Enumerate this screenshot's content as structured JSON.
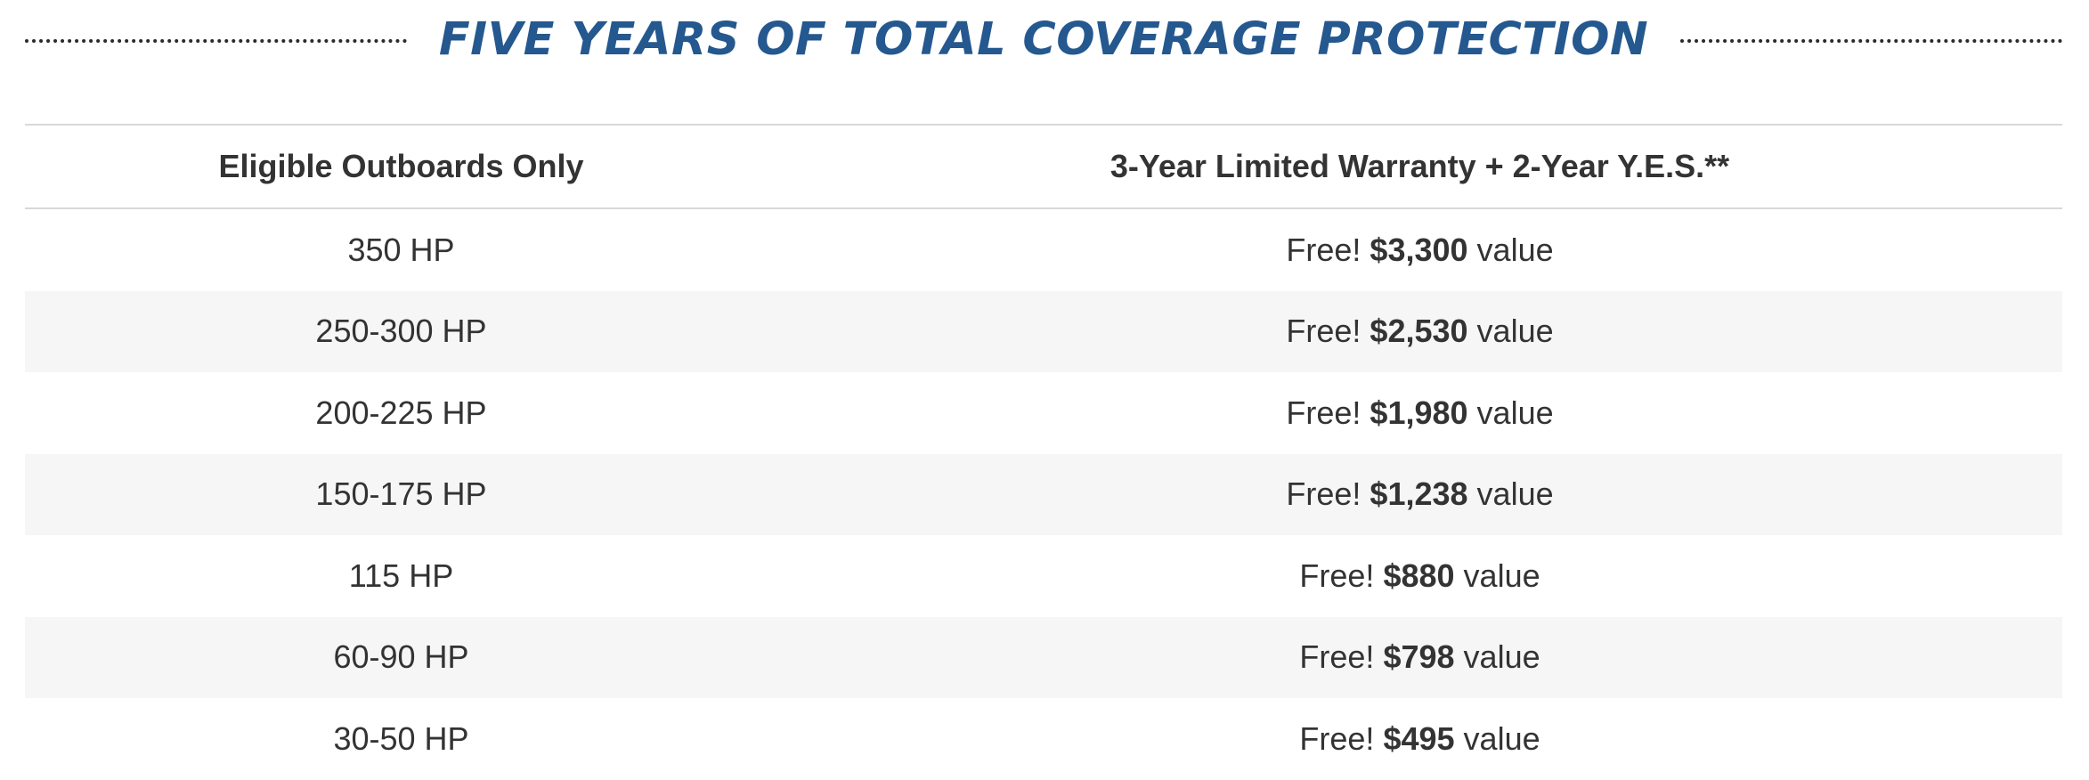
{
  "heading": "FIVE YEARS OF TOTAL COVERAGE PROTECTION",
  "table": {
    "headers": {
      "col_a": "Eligible Outboards Only",
      "col_b": "3-Year Limited Warranty + 2-Year Y.E.S.**"
    },
    "rows": [
      {
        "hp": "350 HP",
        "prefix": "Free!",
        "price": "$3,300",
        "suffix": "value"
      },
      {
        "hp": "250-300 HP",
        "prefix": "Free!",
        "price": "$2,530",
        "suffix": "value"
      },
      {
        "hp": "200-225 HP",
        "prefix": "Free!",
        "price": "$1,980",
        "suffix": "value"
      },
      {
        "hp": "150-175 HP",
        "prefix": "Free!",
        "price": "$1,238",
        "suffix": "value"
      },
      {
        "hp": "115 HP",
        "prefix": "Free!",
        "price": "$880",
        "suffix": "value"
      },
      {
        "hp": "60-90 HP",
        "prefix": "Free!",
        "price": "$798",
        "suffix": "value"
      },
      {
        "hp": "30-50 HP",
        "prefix": "Free!",
        "price": "$495",
        "suffix": "value"
      }
    ]
  },
  "colors": {
    "heading": "#24588f",
    "text": "#333333",
    "row_alt": "#f6f6f6",
    "rule": "#d8d8d8"
  }
}
